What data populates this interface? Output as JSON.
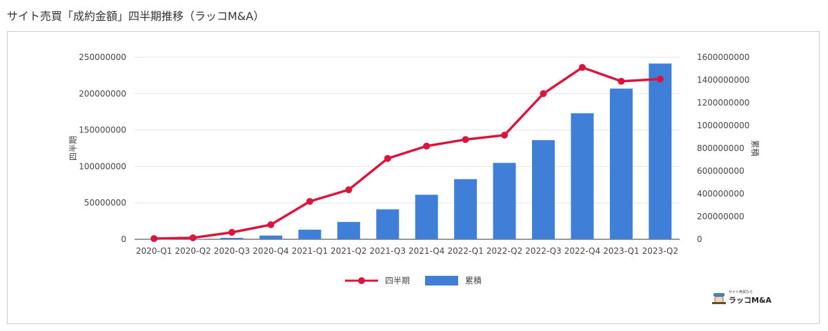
{
  "title": "サイト売買「成約金額」四半期推移（ラッコM&A）",
  "chart_data": {
    "type": "bar+line",
    "categories": [
      "2020-Q1",
      "2020-Q2",
      "2020-Q3",
      "2020-Q4",
      "2021-Q1",
      "2021-Q2",
      "2021-Q3",
      "2021-Q4",
      "2022-Q1",
      "2022-Q2",
      "2022-Q3",
      "2022-Q4",
      "2023-Q1",
      "2023-Q2"
    ],
    "series": [
      {
        "name": "四半期",
        "type": "line",
        "axis": "left",
        "color": "#dc143c",
        "values": [
          1000000,
          2000000,
          9500000,
          20000000,
          52000000,
          68000000,
          111000000,
          128000000,
          137000000,
          143000000,
          200000000,
          236000000,
          217000000,
          220000000
        ]
      },
      {
        "name": "累積",
        "type": "bar",
        "axis": "right",
        "color": "#3f7fd8",
        "values": [
          1000000,
          3000000,
          12500000,
          32500000,
          84500000,
          152500000,
          263500000,
          391500000,
          528500000,
          671500000,
          871500000,
          1107500000,
          1324500000,
          1544500000
        ]
      }
    ],
    "ylabel_left": "四半期",
    "ylabel_right": "累積",
    "ylim_left": [
      0,
      250000000
    ],
    "ylim_right": [
      0,
      1600000000
    ],
    "yticks_left": [
      0,
      50000000,
      100000000,
      150000000,
      200000000,
      250000000
    ],
    "yticks_right": [
      0,
      200000000,
      400000000,
      600000000,
      800000000,
      1000000000,
      1200000000,
      1400000000,
      1600000000
    ],
    "grid": true,
    "legend": "bottom"
  },
  "logo": {
    "tagline": "サイト売買なら",
    "name": "ラッコM&A"
  }
}
